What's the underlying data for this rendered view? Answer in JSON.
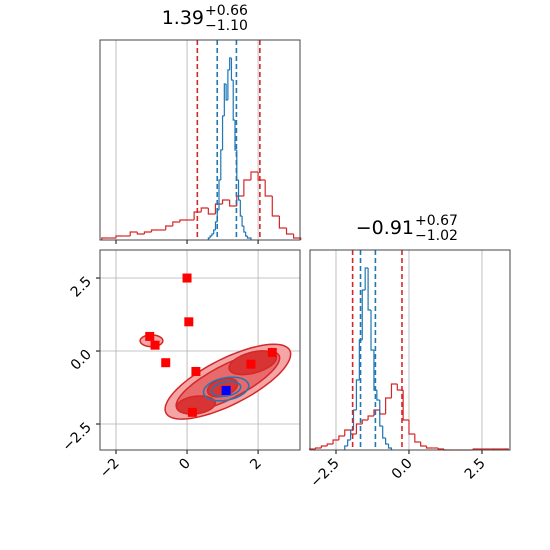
{
  "chart_data": [
    {
      "type": "histogram",
      "title": "1.39",
      "title_sup": "+0.66",
      "title_sub": "−1.10",
      "xlim": [
        -2.45,
        3.18
      ],
      "xticks": [
        -2,
        0,
        2
      ],
      "tick_labels": false,
      "ylim": [
        0,
        1
      ],
      "grid": true,
      "series": [
        {
          "color": "#d62728",
          "bins": [
            -2.4,
            -2.2,
            -2.0,
            -1.8,
            -1.6,
            -1.4,
            -1.2,
            -1.0,
            -0.8,
            -0.6,
            -0.4,
            -0.2,
            0.0,
            0.2,
            0.4,
            0.6,
            0.8,
            1.0,
            1.2,
            1.4,
            1.6,
            1.8,
            2.0,
            2.2,
            2.4,
            2.6,
            2.8,
            3.0,
            3.2
          ],
          "values": [
            0.01,
            0.01,
            0.02,
            0.02,
            0.04,
            0.03,
            0.04,
            0.05,
            0.05,
            0.07,
            0.09,
            0.1,
            0.1,
            0.14,
            0.16,
            0.13,
            0.18,
            0.2,
            0.17,
            0.22,
            0.3,
            0.34,
            0.3,
            0.22,
            0.12,
            0.06,
            0.03,
            0.01
          ]
        },
        {
          "color": "#1f77b4",
          "bins": [
            0.6,
            0.65,
            0.7,
            0.75,
            0.8,
            0.85,
            0.9,
            0.95,
            1.0,
            1.05,
            1.1,
            1.15,
            1.2,
            1.25,
            1.3,
            1.35,
            1.4,
            1.45,
            1.5,
            1.55,
            1.6,
            1.65,
            1.7,
            1.75,
            1.8
          ],
          "values": [
            0.01,
            0.02,
            0.03,
            0.05,
            0.09,
            0.15,
            0.3,
            0.45,
            0.62,
            0.78,
            0.7,
            0.85,
            0.91,
            0.8,
            0.6,
            0.45,
            0.3,
            0.2,
            0.12,
            0.07,
            0.04,
            0.02,
            0.01,
            0.01
          ]
        }
      ],
      "vlines": [
        {
          "color": "#d62728",
          "value": 0.29
        },
        {
          "color": "#d62728",
          "value": 2.05
        },
        {
          "color": "#1f77b4",
          "value": 0.85
        },
        {
          "color": "#1f77b4",
          "value": 1.39
        }
      ]
    },
    {
      "type": "contour",
      "xlim": [
        -2.45,
        3.18
      ],
      "xticks": [
        {
          "value": -2,
          "label": "−2"
        },
        0,
        2
      ],
      "ylim": [
        -3.39,
        3.46
      ],
      "yticks": [
        {
          "value": -2.5,
          "label": "−2.5"
        },
        {
          "value": 0,
          "label": "0.0"
        },
        2.5
      ],
      "grid": true,
      "contours": [
        {
          "fill": "#f4a6a6",
          "stroke": "#d62728",
          "cx": 1.15,
          "cy": -1.05,
          "a": 2.05,
          "b": 0.75,
          "angle": 33
        },
        {
          "fill": "#f4a6a6",
          "stroke": "#d62728",
          "cx": -1.0,
          "cy": 0.35,
          "a": 0.32,
          "b": 0.2,
          "angle": 0
        },
        {
          "fill": "#e86a6a",
          "stroke": "#d62728",
          "cx": 1.15,
          "cy": -1.05,
          "a": 1.7,
          "b": 0.55,
          "angle": 33
        },
        {
          "fill": "#d93434",
          "stroke": "#d62728",
          "cx": 0.25,
          "cy": -1.85,
          "a": 0.55,
          "b": 0.3,
          "angle": 10
        },
        {
          "fill": "#d93434",
          "stroke": "#d62728",
          "cx": 1.85,
          "cy": -0.4,
          "a": 0.7,
          "b": 0.35,
          "angle": 20
        },
        {
          "fill": "#d93434",
          "stroke": "#d62728",
          "cx": 1.0,
          "cy": -1.25,
          "a": 0.45,
          "b": 0.28,
          "angle": 25
        },
        {
          "fill": "none",
          "stroke": "#1f77b4",
          "cx": 1.1,
          "cy": -1.3,
          "a": 0.65,
          "b": 0.38,
          "angle": 15
        },
        {
          "fill": "none",
          "stroke": "#1f77b4",
          "cx": 1.1,
          "cy": -1.3,
          "a": 0.42,
          "b": 0.24,
          "angle": 15
        }
      ],
      "series": [
        {
          "color": "#ff0000",
          "x": [
            0.0,
            0.05,
            -1.05,
            -0.9,
            -0.6,
            0.25,
            1.8,
            2.4,
            0.15
          ],
          "y": [
            2.5,
            1.0,
            0.5,
            0.2,
            -0.4,
            -0.7,
            -0.45,
            -0.05,
            -2.1
          ]
        },
        {
          "color": "#0000ff",
          "x": [
            1.1
          ],
          "y": [
            -1.35
          ]
        }
      ]
    },
    {
      "type": "histogram",
      "title": "−0.91",
      "title_sup": "+0.67",
      "title_sub": "−1.02",
      "xlim": [
        -3.39,
        3.46
      ],
      "xticks": [
        {
          "value": -2.5,
          "label": "−2.5"
        },
        {
          "value": 0,
          "label": "0.0"
        },
        2.5
      ],
      "tick_labels": true,
      "ylim": [
        0,
        1
      ],
      "grid": true,
      "series": [
        {
          "color": "#d62728",
          "bins": [
            -3.4,
            -3.2,
            -3.0,
            -2.8,
            -2.6,
            -2.4,
            -2.2,
            -2.0,
            -1.8,
            -1.6,
            -1.4,
            -1.2,
            -1.0,
            -0.8,
            -0.6,
            -0.4,
            -0.2,
            0.0,
            0.2,
            0.4,
            0.6,
            0.8,
            1.0,
            1.2,
            1.4,
            1.6,
            1.8,
            2.0,
            2.2,
            2.4,
            2.6,
            2.8,
            3.0,
            3.2,
            3.4
          ],
          "values": [
            0.005,
            0.01,
            0.02,
            0.03,
            0.05,
            0.07,
            0.1,
            0.08,
            0.13,
            0.15,
            0.17,
            0.2,
            0.18,
            0.26,
            0.33,
            0.3,
            0.15,
            0.08,
            0.04,
            0.02,
            0.01,
            0.01,
            0.005,
            0,
            0,
            0,
            0,
            0,
            0.005,
            0.005,
            0.005,
            0.005,
            0.005,
            0.005
          ]
        },
        {
          "color": "#1f77b4",
          "bins": [
            -2.2,
            -2.1,
            -2.0,
            -1.9,
            -1.8,
            -1.7,
            -1.6,
            -1.5,
            -1.4,
            -1.3,
            -1.2,
            -1.1,
            -1.0,
            -0.9,
            -0.8,
            -0.7,
            -0.6
          ],
          "values": [
            0.02,
            0.05,
            0.1,
            0.2,
            0.35,
            0.55,
            0.8,
            0.91,
            0.7,
            0.5,
            0.3,
            0.25,
            0.12,
            0.06,
            0.03,
            0.01
          ]
        }
      ],
      "vlines": [
        {
          "color": "#d62728",
          "value": -1.93
        },
        {
          "color": "#d62728",
          "value": -0.24
        },
        {
          "color": "#1f77b4",
          "value": -1.66
        },
        {
          "color": "#1f77b4",
          "value": -1.15
        }
      ]
    }
  ]
}
